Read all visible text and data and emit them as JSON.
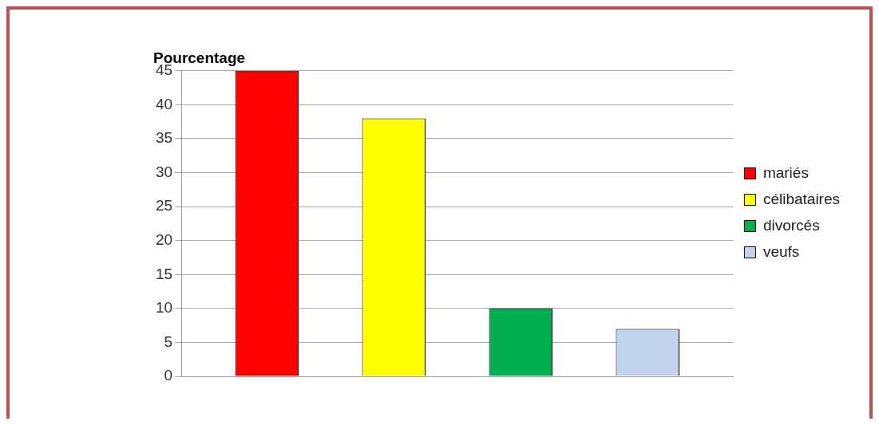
{
  "chart_data": {
    "type": "bar",
    "ylabel": "Pourcentage",
    "categories": [
      null
    ],
    "series": [
      {
        "name": "mariés",
        "color": "#ff0000",
        "values": [
          45
        ]
      },
      {
        "name": "célibataires",
        "color": "#ffff00",
        "values": [
          38
        ]
      },
      {
        "name": "divorcés",
        "color": "#00b050",
        "values": [
          10
        ]
      },
      {
        "name": "veufs",
        "color": "#c0d4ec",
        "values": [
          7
        ]
      }
    ],
    "ylim": [
      0,
      45
    ],
    "yticks": [
      0,
      5,
      10,
      15,
      20,
      25,
      30,
      35,
      40,
      45
    ],
    "grid": "y",
    "legend": "right",
    "tick_labels": "y"
  }
}
